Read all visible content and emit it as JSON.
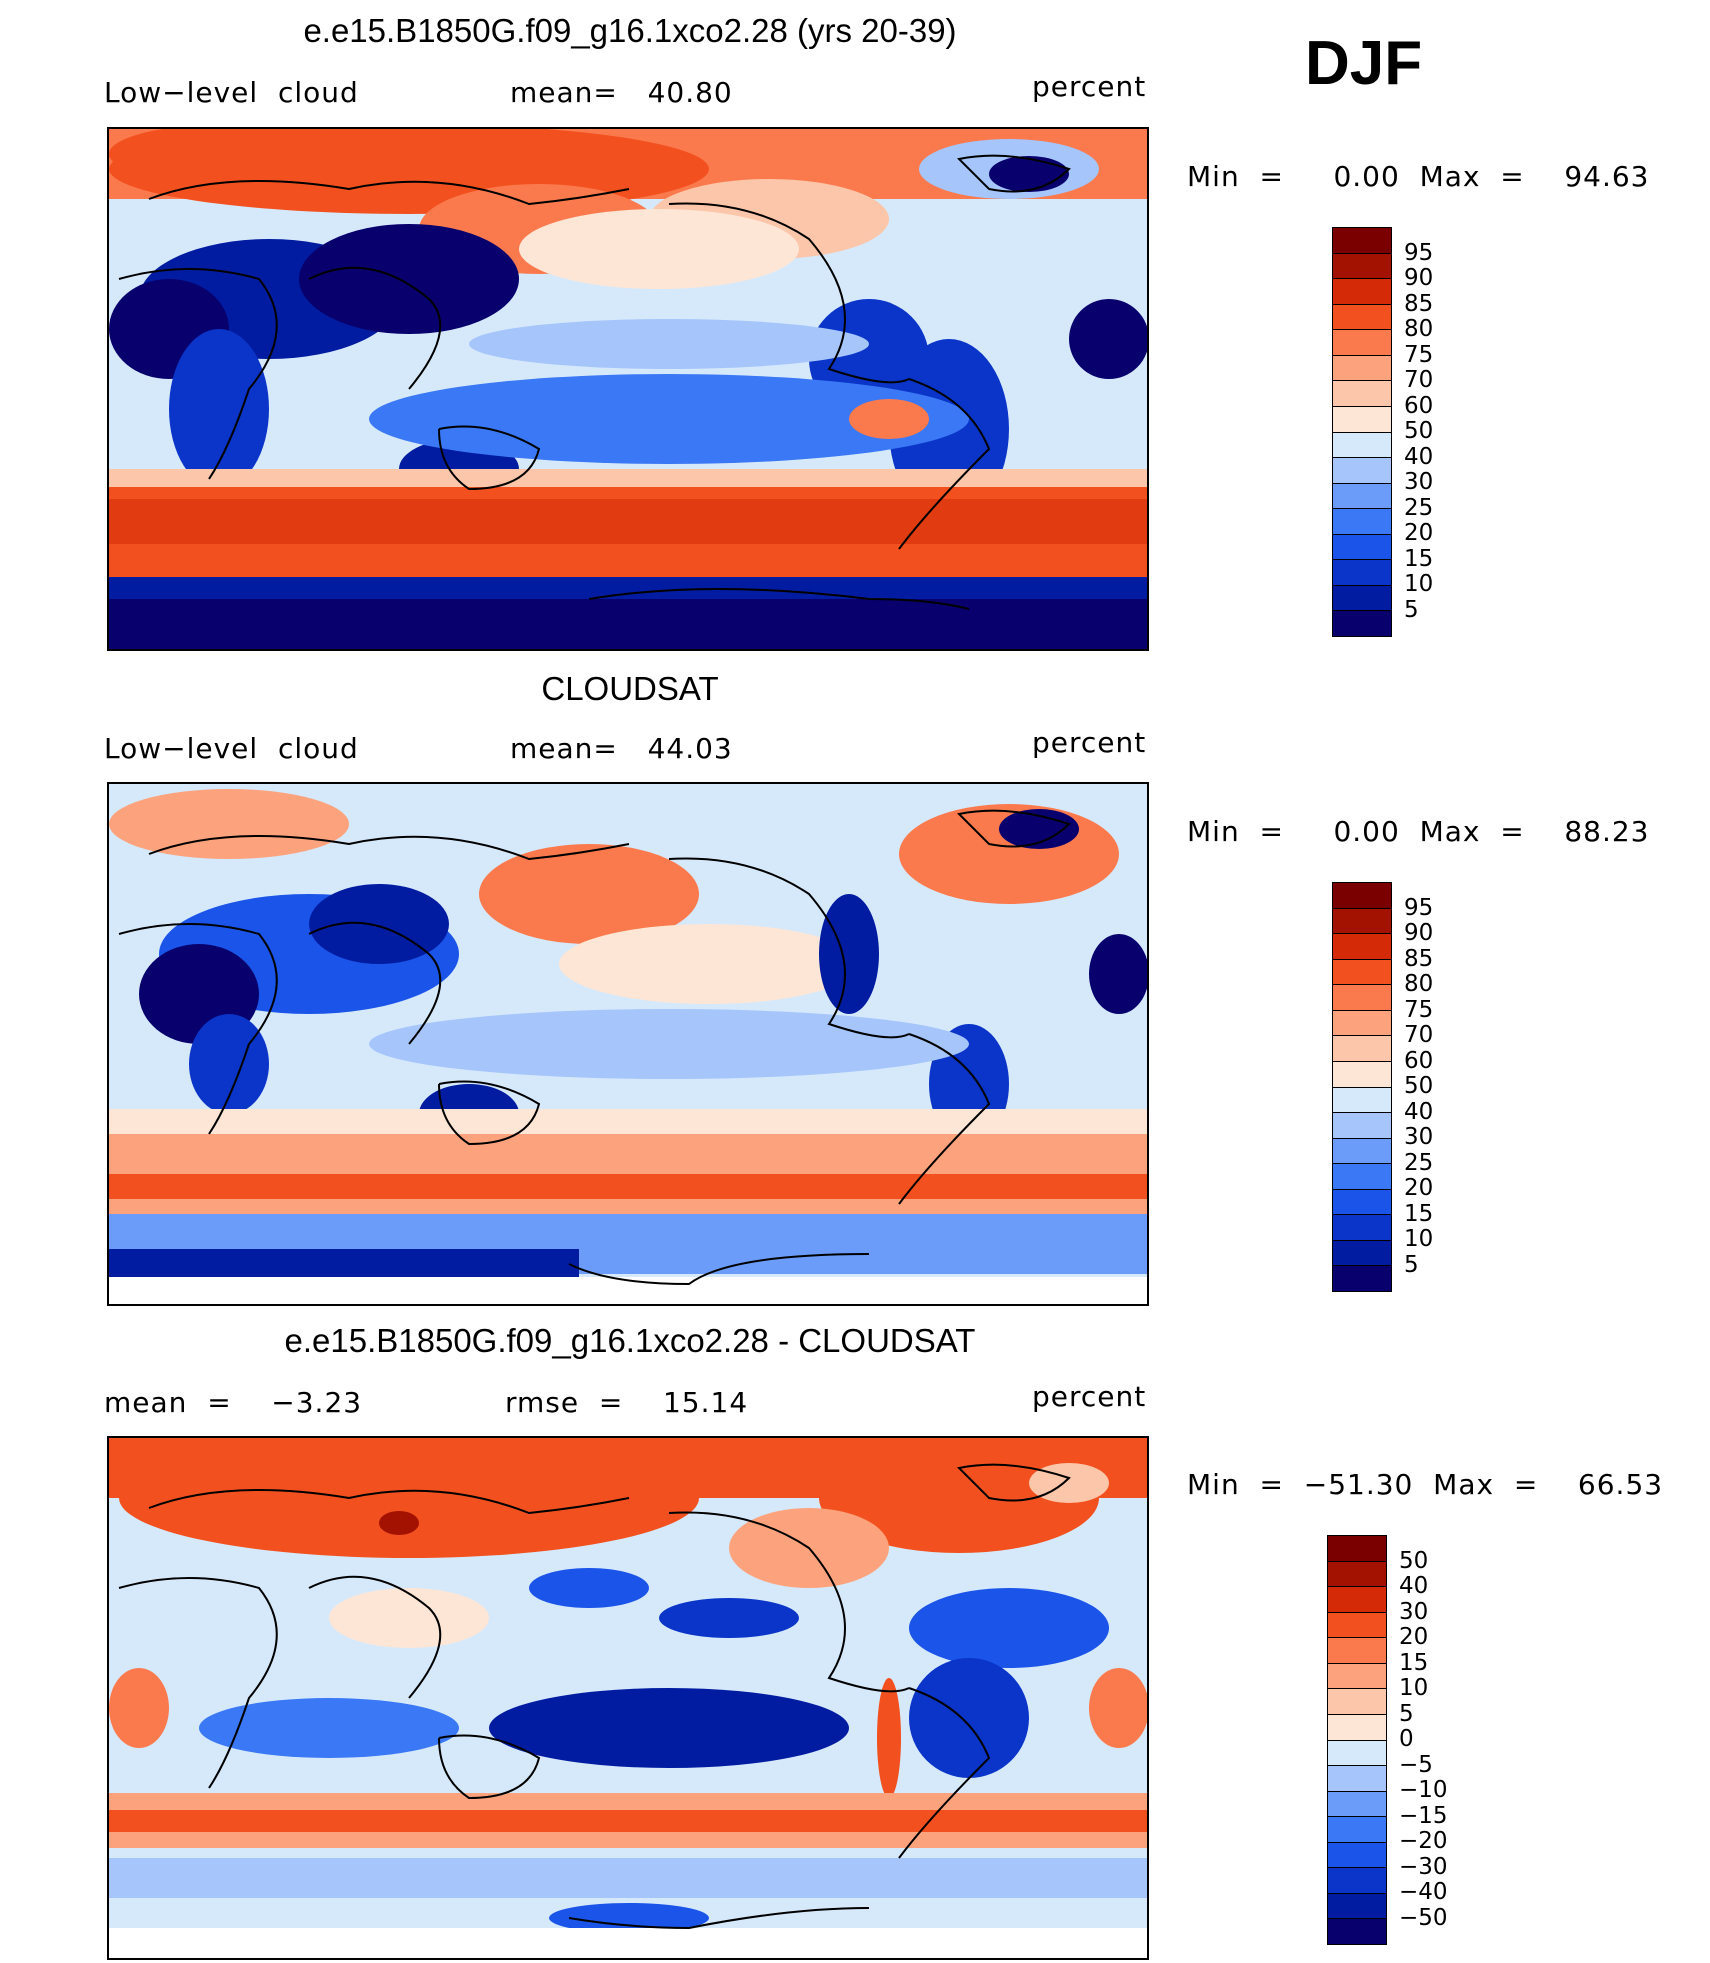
{
  "season": "DJF",
  "colors": {
    "levels_abs": [
      "#08006d",
      "#021ca1",
      "#0a35c8",
      "#1a54e8",
      "#3a78f5",
      "#6b9cf9",
      "#a5c5fb",
      "#d6e9fb",
      "#fde6d6",
      "#fcc6aa",
      "#fca37d",
      "#fb7a4d",
      "#f2511f",
      "#d42a07",
      "#a31200",
      "#7a0000"
    ],
    "levels_diff": [
      "#08006d",
      "#021ca1",
      "#0a35c8",
      "#1a54e8",
      "#3a78f5",
      "#6b9cf9",
      "#a5c5fb",
      "#d6e9fb",
      "#fde6d6",
      "#fcc6aa",
      "#fca37d",
      "#fb7a4d",
      "#f2511f",
      "#d42a07",
      "#a31200",
      "#7a0000"
    ]
  },
  "panels": [
    {
      "title": "e.e15.B1850G.f09_g16.1xco2.28 (yrs 20-39)",
      "left_text": "Low−level  cloud",
      "center_text": "mean=   40.80",
      "right_text": "percent",
      "minmax": "Min  =     0.00  Max  =    94.63",
      "colorbar_labels": [
        "95",
        "90",
        "85",
        "80",
        "75",
        "70",
        "60",
        "50",
        "40",
        "30",
        "25",
        "20",
        "15",
        "10",
        "5"
      ]
    },
    {
      "title": "CLOUDSAT",
      "left_text": "Low−level  cloud",
      "center_text": "mean=   44.03",
      "right_text": "percent",
      "minmax": "Min  =     0.00  Max  =    88.23",
      "colorbar_labels": [
        "95",
        "90",
        "85",
        "80",
        "75",
        "70",
        "60",
        "50",
        "40",
        "30",
        "25",
        "20",
        "15",
        "10",
        "5"
      ]
    },
    {
      "title": "e.e15.B1850G.f09_g16.1xco2.28 - CLOUDSAT",
      "left_text": "mean  =    −3.23",
      "center_text": "rmse  =    15.14",
      "right_text": "percent",
      "minmax": "Min  =  −51.30  Max  =    66.53",
      "colorbar_labels": [
        "50",
        "40",
        "30",
        "20",
        "15",
        "10",
        "5",
        "0",
        "−5",
        "−10",
        "−15",
        "−20",
        "−30",
        "−40",
        "−50"
      ]
    }
  ]
}
